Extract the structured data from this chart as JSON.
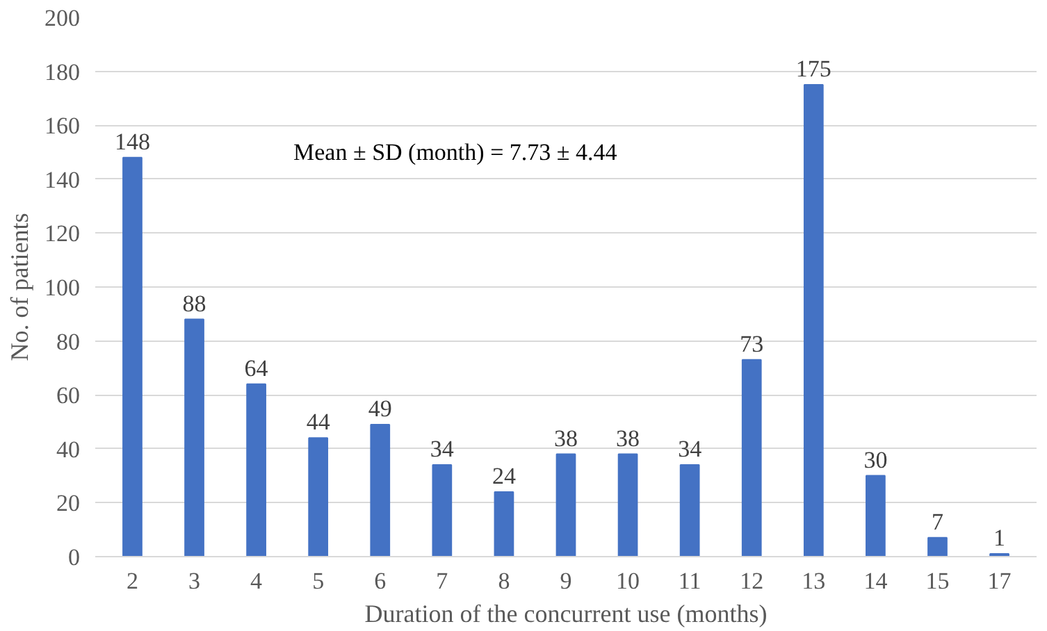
{
  "chart_data": {
    "type": "bar",
    "xlabel": "Duration of the concurrent use (months)",
    "ylabel": "No. of patients",
    "categories": [
      "2",
      "3",
      "4",
      "5",
      "6",
      "7",
      "8",
      "9",
      "10",
      "11",
      "12",
      "13",
      "14",
      "15",
      "17"
    ],
    "values": [
      148,
      88,
      64,
      44,
      49,
      34,
      24,
      38,
      38,
      34,
      73,
      175,
      30,
      7,
      1
    ],
    "color": "#4472c4",
    "ylim": [
      0,
      200
    ],
    "yticks": [
      0,
      20,
      40,
      60,
      80,
      100,
      120,
      140,
      160,
      180,
      200
    ],
    "grid": "y",
    "data_labels": true,
    "annotations": [
      "Mean ± SD (month) = 7.73 ± 4.44"
    ]
  }
}
